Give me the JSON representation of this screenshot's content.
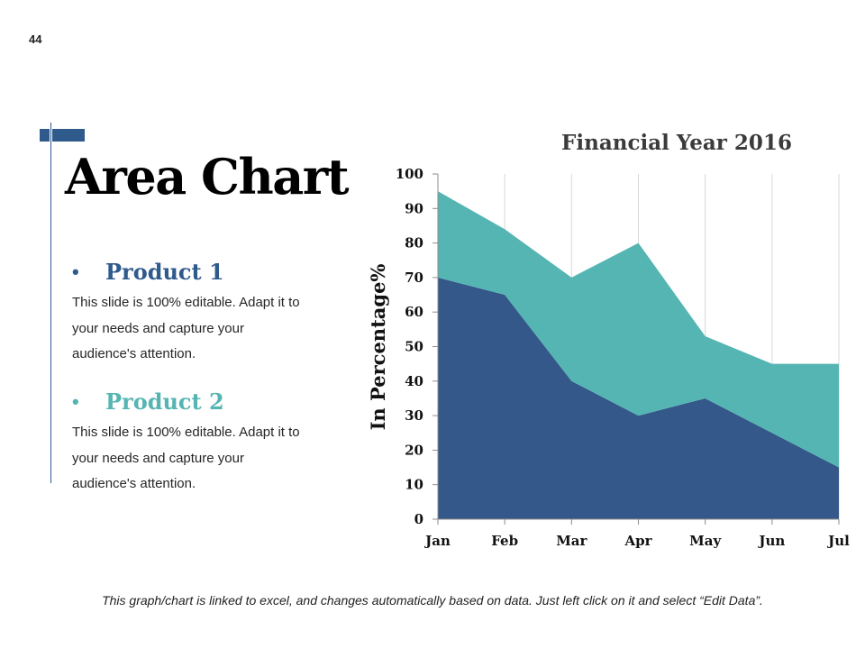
{
  "page": {
    "number": "44",
    "title": "Area Chart"
  },
  "products": [
    {
      "bullet": "•",
      "name": "Product 1",
      "color": "#2f5a8c",
      "description": "This slide is 100% editable. Adapt it to your needs and capture your audience's attention."
    },
    {
      "bullet": "•",
      "name": "Product 2",
      "color": "#55b5b3",
      "description": "This slide is 100% editable. Adapt it to your needs and capture your audience's attention."
    }
  ],
  "footer": {
    "note": "This graph/chart is linked to excel, and changes automatically based on data. Just left click on it and select “Edit Data”."
  },
  "chart_data": {
    "type": "area",
    "stacked": true,
    "title": "Financial Year 2016",
    "xlabel": "",
    "ylabel": "In Percentage%",
    "categories": [
      "Jan",
      "Feb",
      "Mar",
      "Apr",
      "May",
      "Jun",
      "Jul"
    ],
    "ylim": [
      0,
      100
    ],
    "yticks": [
      0,
      10,
      20,
      30,
      40,
      50,
      60,
      70,
      80,
      90,
      100
    ],
    "grid": "vertical",
    "series": [
      {
        "name": "Product 1",
        "color": "#335889",
        "values": [
          70,
          65,
          40,
          30,
          35,
          25,
          15
        ]
      },
      {
        "name": "Product 2",
        "color": "#55b5b3",
        "values": [
          25,
          19,
          30,
          50,
          18,
          20,
          30
        ]
      }
    ]
  }
}
